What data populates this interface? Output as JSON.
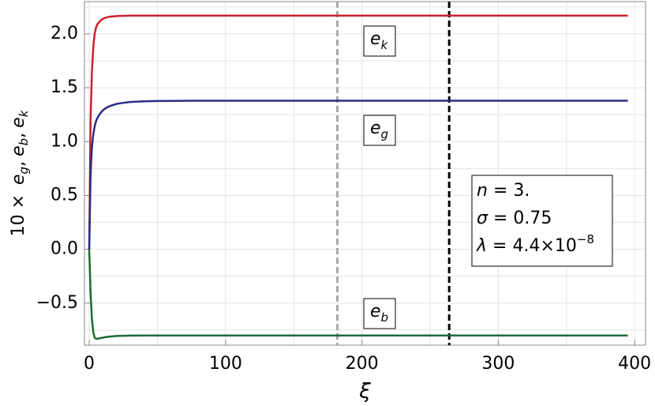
{
  "chart_data": {
    "type": "line",
    "x_label": "ξ",
    "y_label": {
      "prefix": "10 ×",
      "separator": ",",
      "terms": [
        {
          "base": "e",
          "sub": "g"
        },
        {
          "base": "e",
          "sub": "b"
        },
        {
          "base": "e",
          "sub": "k"
        }
      ]
    },
    "x": [
      0,
      1,
      2,
      3,
      4,
      5,
      6,
      8,
      10,
      12,
      15,
      20,
      25,
      30,
      40,
      50,
      60,
      80,
      100,
      150,
      200,
      250,
      300,
      350,
      395
    ],
    "series": [
      {
        "label_base": "e",
        "label_sub": "k",
        "color": "#c8232c",
        "values": [
          0,
          1.2,
          1.65,
          1.88,
          2.0,
          2.06,
          2.09,
          2.12,
          2.14,
          2.15,
          2.16,
          2.165,
          2.168,
          2.17,
          2.17,
          2.17,
          2.17,
          2.17,
          2.17,
          2.17,
          2.17,
          2.17,
          2.17,
          2.17,
          2.17
        ]
      },
      {
        "label_base": "e",
        "label_sub": "g",
        "color": "#2a2d84",
        "values": [
          0,
          0.7,
          0.95,
          1.07,
          1.14,
          1.19,
          1.22,
          1.26,
          1.29,
          1.31,
          1.33,
          1.35,
          1.36,
          1.368,
          1.374,
          1.377,
          1.378,
          1.38,
          1.38,
          1.38,
          1.38,
          1.38,
          1.38,
          1.38,
          1.38
        ]
      },
      {
        "label_base": "e",
        "label_sub": "b",
        "color": "#1d6b34",
        "values": [
          0,
          -0.4,
          -0.65,
          -0.77,
          -0.82,
          -0.83,
          -0.83,
          -0.825,
          -0.82,
          -0.815,
          -0.81,
          -0.805,
          -0.803,
          -0.801,
          -0.8,
          -0.8,
          -0.8,
          -0.8,
          -0.8,
          -0.8,
          -0.8,
          -0.8,
          -0.8,
          -0.8,
          -0.8
        ]
      }
    ],
    "vlines": [
      {
        "x": 182,
        "color": "#aaaaaa"
      },
      {
        "x": 264,
        "color": "#000000"
      }
    ],
    "params": [
      {
        "symbol": "n",
        "text": " = 3."
      },
      {
        "symbol": "σ",
        "text": " = 0.75"
      },
      {
        "symbol": "λ",
        "text": " = 4.4×10",
        "sup": "−8"
      }
    ],
    "xlim": [
      -3.5,
      408
    ],
    "ylim": [
      -0.89,
      2.3
    ],
    "xticks": [
      0,
      100,
      200,
      300,
      400
    ],
    "yticks": [
      {
        "value": -0.5,
        "label": "−0.5"
      },
      {
        "value": 0,
        "label": "0.0"
      },
      {
        "value": 0.5,
        "label": "0.5"
      },
      {
        "value": 1,
        "label": "1.0"
      },
      {
        "value": 1.5,
        "label": "1.5"
      },
      {
        "value": 2,
        "label": "2.0"
      }
    ],
    "xgrid": [
      0,
      50,
      100,
      150,
      200,
      250,
      300,
      350,
      400
    ],
    "ygrid": [
      -0.75,
      -0.5,
      -0.25,
      0,
      0.25,
      0.5,
      0.75,
      1,
      1.25,
      1.5,
      1.75,
      2,
      2.25
    ],
    "grid": true
  }
}
